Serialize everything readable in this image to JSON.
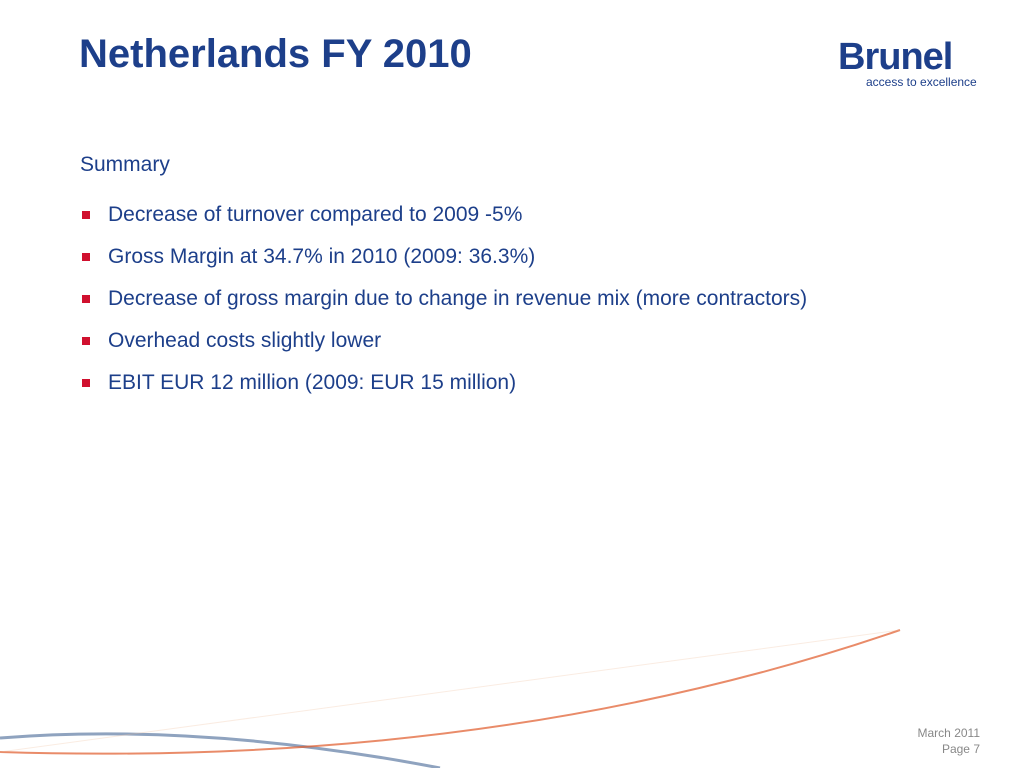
{
  "header": {
    "title": "Netherlands FY 2010",
    "logo": {
      "name": "Brunel",
      "tagline": "access to excellence"
    }
  },
  "section": {
    "heading": "Summary",
    "bullets": [
      "Decrease of turnover compared to 2009 -5%",
      "Gross Margin at 34.7% in 2010 (2009: 36.3%)",
      "Decrease of gross margin due to change in revenue mix (more contractors)",
      "Overhead costs slightly lower",
      "EBIT EUR 12 million (2009: EUR 15 million)"
    ]
  },
  "footer": {
    "date": "March 2011",
    "page": "Page 7"
  }
}
